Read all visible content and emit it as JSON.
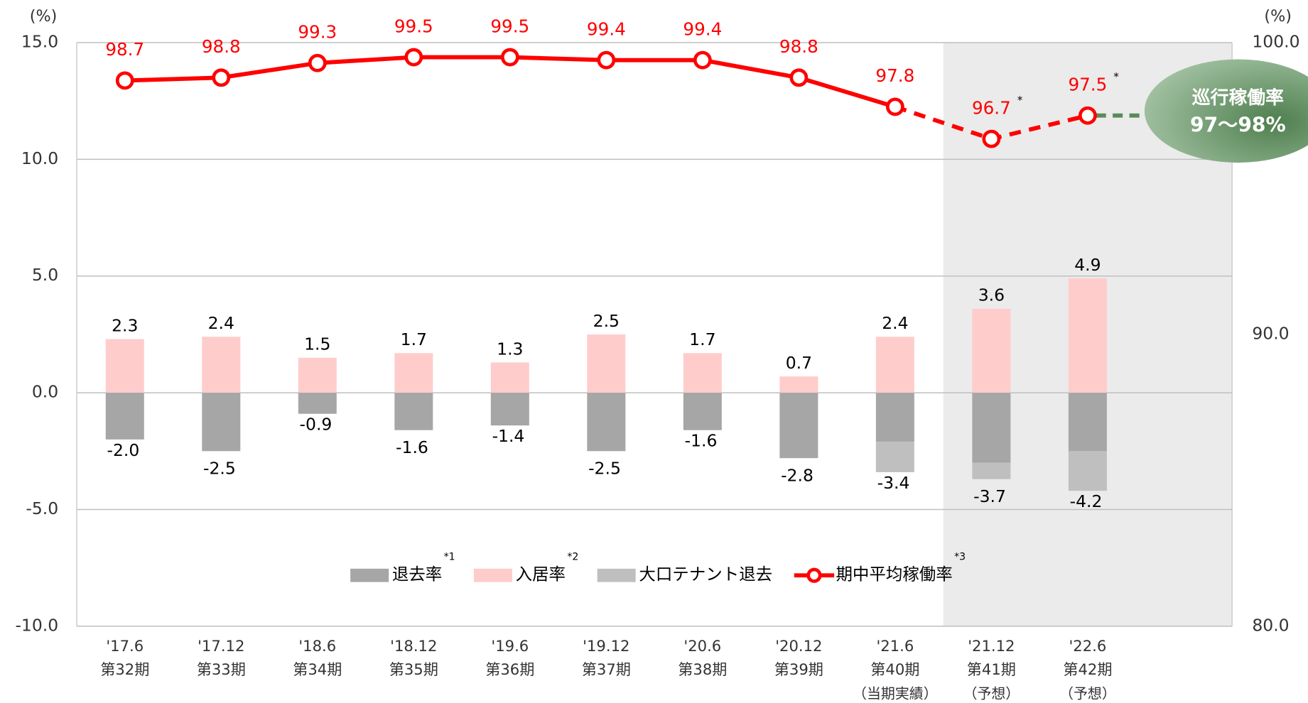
{
  "chart_data": {
    "type": "bar",
    "y_unit": "(%)",
    "y2_unit": "(%)",
    "categories": [
      "'17.6",
      "'17.12",
      "'18.6",
      "'18.12",
      "'19.6",
      "'19.12",
      "'20.6",
      "'20.12",
      "'21.6",
      "'21.12",
      "'22.6"
    ],
    "periods": [
      "第32期",
      "第33期",
      "第34期",
      "第35期",
      "第36期",
      "第37期",
      "第38期",
      "第39期",
      "第40期",
      "第41期",
      "第42期"
    ],
    "notes": [
      null,
      null,
      null,
      null,
      null,
      null,
      null,
      null,
      "（当期実績）",
      "（予想）",
      "（予想）"
    ],
    "ylim": [
      -10,
      15
    ],
    "yticks": [
      {
        "value": 15,
        "label": "15.0"
      },
      {
        "value": 10,
        "label": "10.0"
      },
      {
        "value": 5,
        "label": "5.0"
      },
      {
        "value": 0,
        "label": "0.0"
      },
      {
        "value": -5,
        "label": "-5.0"
      },
      {
        "value": -10,
        "label": "-10.0"
      }
    ],
    "y2lim": [
      80,
      100
    ],
    "y2ticks": [
      {
        "value": 100,
        "label": "100.0"
      },
      {
        "value": 90,
        "label": "90.0"
      },
      {
        "value": 80,
        "label": "80.0"
      }
    ],
    "grid": true,
    "forecast_from_index": 9,
    "series": [
      {
        "name": "退去率",
        "note": "*1",
        "color": "#a6a6a6",
        "values": [
          -2.0,
          -2.5,
          -0.9,
          -1.6,
          -1.4,
          -2.5,
          -1.6,
          -2.8,
          -2.1,
          -3.0,
          -2.5
        ]
      },
      {
        "name": "入居率",
        "note": "*2",
        "color": "#ffcccc",
        "values": [
          2.3,
          2.4,
          1.5,
          1.7,
          1.3,
          2.5,
          1.7,
          0.7,
          2.4,
          3.6,
          4.9
        ]
      },
      {
        "name": "大口テナント退去",
        "color": "#bfbfbf",
        "values": [
          null,
          null,
          null,
          null,
          null,
          null,
          null,
          null,
          -1.3,
          -0.7,
          -1.7
        ]
      },
      {
        "name": "期中平均稼働率",
        "note": "*3",
        "color": "#ff0000",
        "axis": "y2",
        "type": "line",
        "dashed_from_index": 8,
        "values": [
          98.7,
          98.8,
          99.3,
          99.5,
          99.5,
          99.4,
          99.4,
          98.8,
          97.8,
          96.7,
          97.5
        ],
        "label_marks": [
          null,
          null,
          null,
          null,
          null,
          null,
          null,
          null,
          null,
          "*",
          "*"
        ]
      }
    ],
    "move_out_total_labels": [
      "-2.0",
      "-2.5",
      "-0.9",
      "-1.6",
      "-1.4",
      "-2.5",
      "-1.6",
      "-2.8",
      "-3.4",
      "-3.7",
      "-4.2"
    ],
    "callout": {
      "title": "巡行稼働率",
      "text": "97～98%",
      "color": "#5a8a5a"
    }
  }
}
